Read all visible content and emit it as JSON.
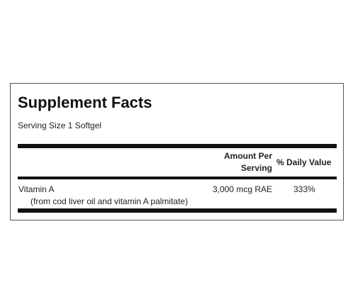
{
  "header": {
    "title": "Supplement Facts",
    "serving_size": "Serving Size 1 Softgel"
  },
  "table": {
    "columns": [
      "Amount Per Serving",
      "% Daily Value"
    ],
    "rows": [
      {
        "name": "Vitamin A",
        "note": "(from cod liver oil and vitamin A palmitate)",
        "amount": "3,000 mcg RAE",
        "daily_value": "333%"
      }
    ]
  }
}
